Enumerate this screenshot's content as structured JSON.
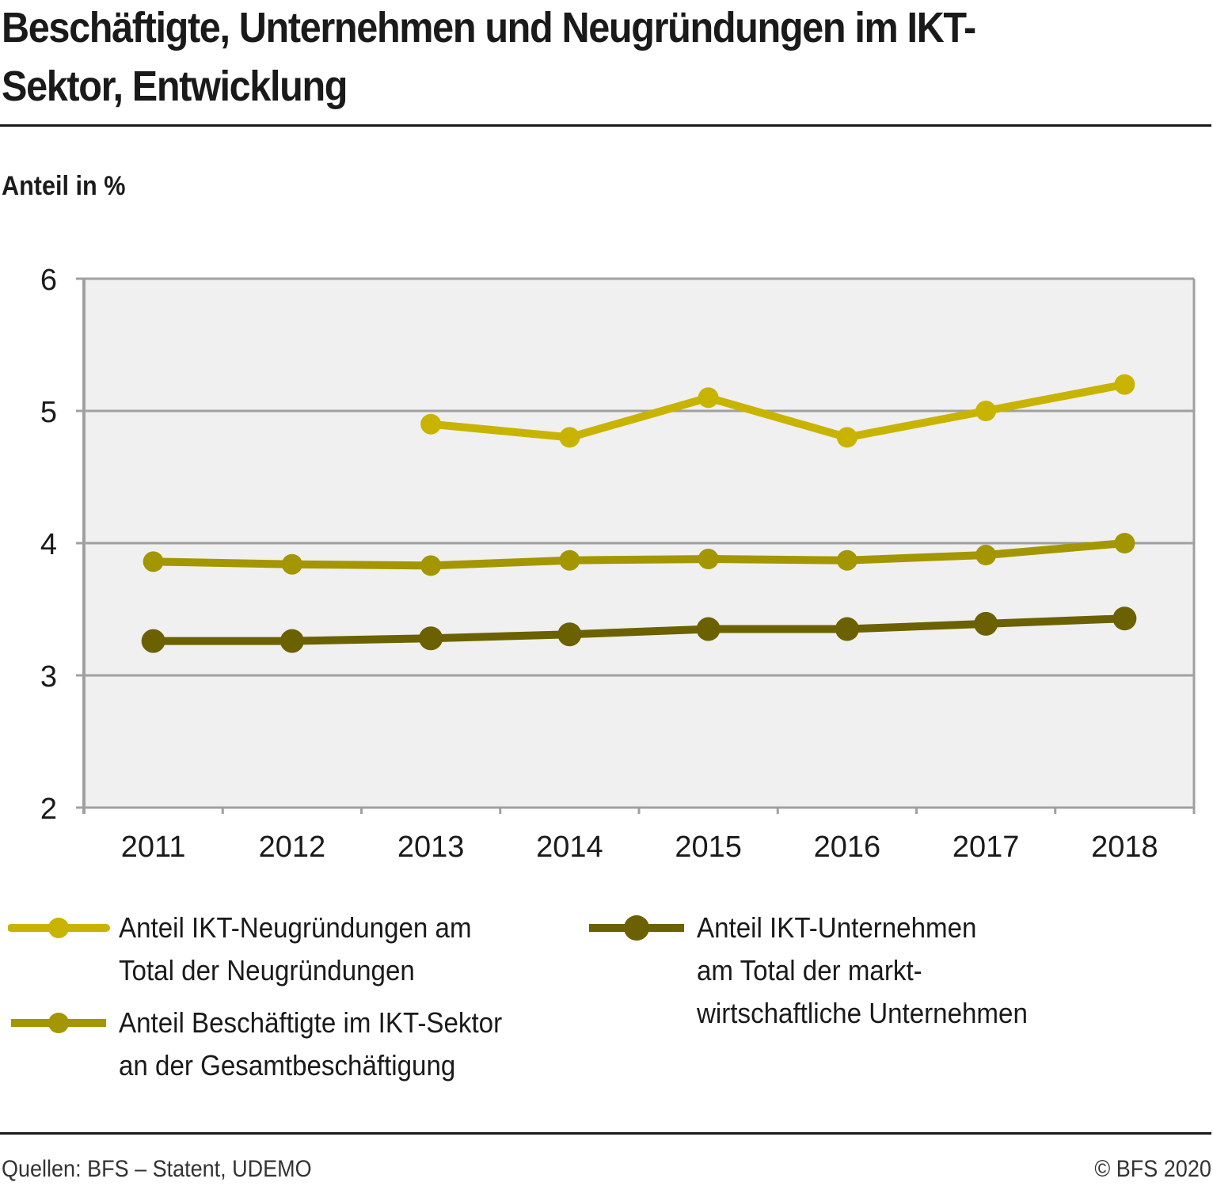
{
  "header": {
    "title": "Beschäftigte, Unternehmen und Neugründungen im IKT-Sektor, Entwicklung",
    "unit_label": "Anteil in %"
  },
  "footer": {
    "source": "Quellen: BFS – Statent, UDEMO",
    "copyright": "© BFS 2020"
  },
  "chart_data": {
    "type": "line",
    "title": "Beschäftigte, Unternehmen und Neugründungen im IKT-Sektor, Entwicklung",
    "xlabel": "",
    "ylabel": "Anteil in %",
    "categories": [
      "2011",
      "2012",
      "2013",
      "2014",
      "2015",
      "2016",
      "2017",
      "2018"
    ],
    "ylim": [
      2,
      6
    ],
    "yticks": [
      2,
      3,
      4,
      5,
      6
    ],
    "grid": true,
    "legend_position": "bottom",
    "background": "#F0F0F0",
    "gridline_color": "#A0A0A0",
    "series": [
      {
        "name": "Anteil IKT-Neugründungen am\nTotal der Neugründungen",
        "color": "#C8B400",
        "values": [
          null,
          null,
          4.9,
          4.8,
          5.1,
          4.8,
          5.0,
          5.2
        ]
      },
      {
        "name": "Anteil Beschäftigte im IKT-Sektor\nan der Gesamtbeschäftigung",
        "color": "#A39600",
        "values": [
          3.86,
          3.84,
          3.83,
          3.87,
          3.88,
          3.87,
          3.91,
          4.0
        ]
      },
      {
        "name": "Anteil IKT-Unternehmen\nam Total der markt-\nwirtschaftliche Unternehmen",
        "color": "#6B6100",
        "values": [
          3.26,
          3.26,
          3.28,
          3.31,
          3.35,
          3.35,
          3.39,
          3.43
        ]
      }
    ]
  }
}
